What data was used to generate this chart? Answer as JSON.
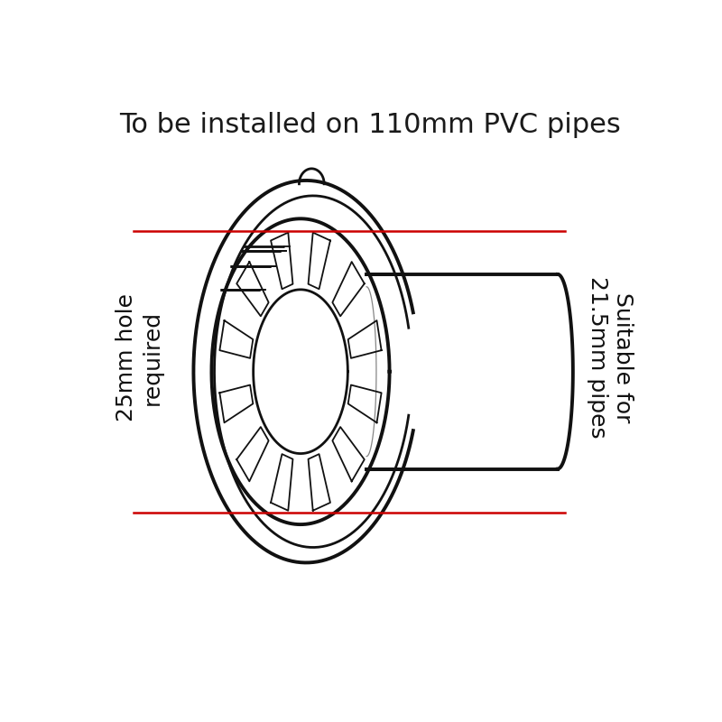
{
  "title": "To be installed on 110mm PVC pipes",
  "title_fontsize": 22,
  "title_color": "#1a1a1a",
  "background_color": "#ffffff",
  "line_color": "#111111",
  "red_line_color": "#cc0000",
  "left_label": "25mm hole\nrequired",
  "right_label": "Suitable for\n21.5mm pipes",
  "label_fontsize": 18,
  "label_color": "#111111"
}
